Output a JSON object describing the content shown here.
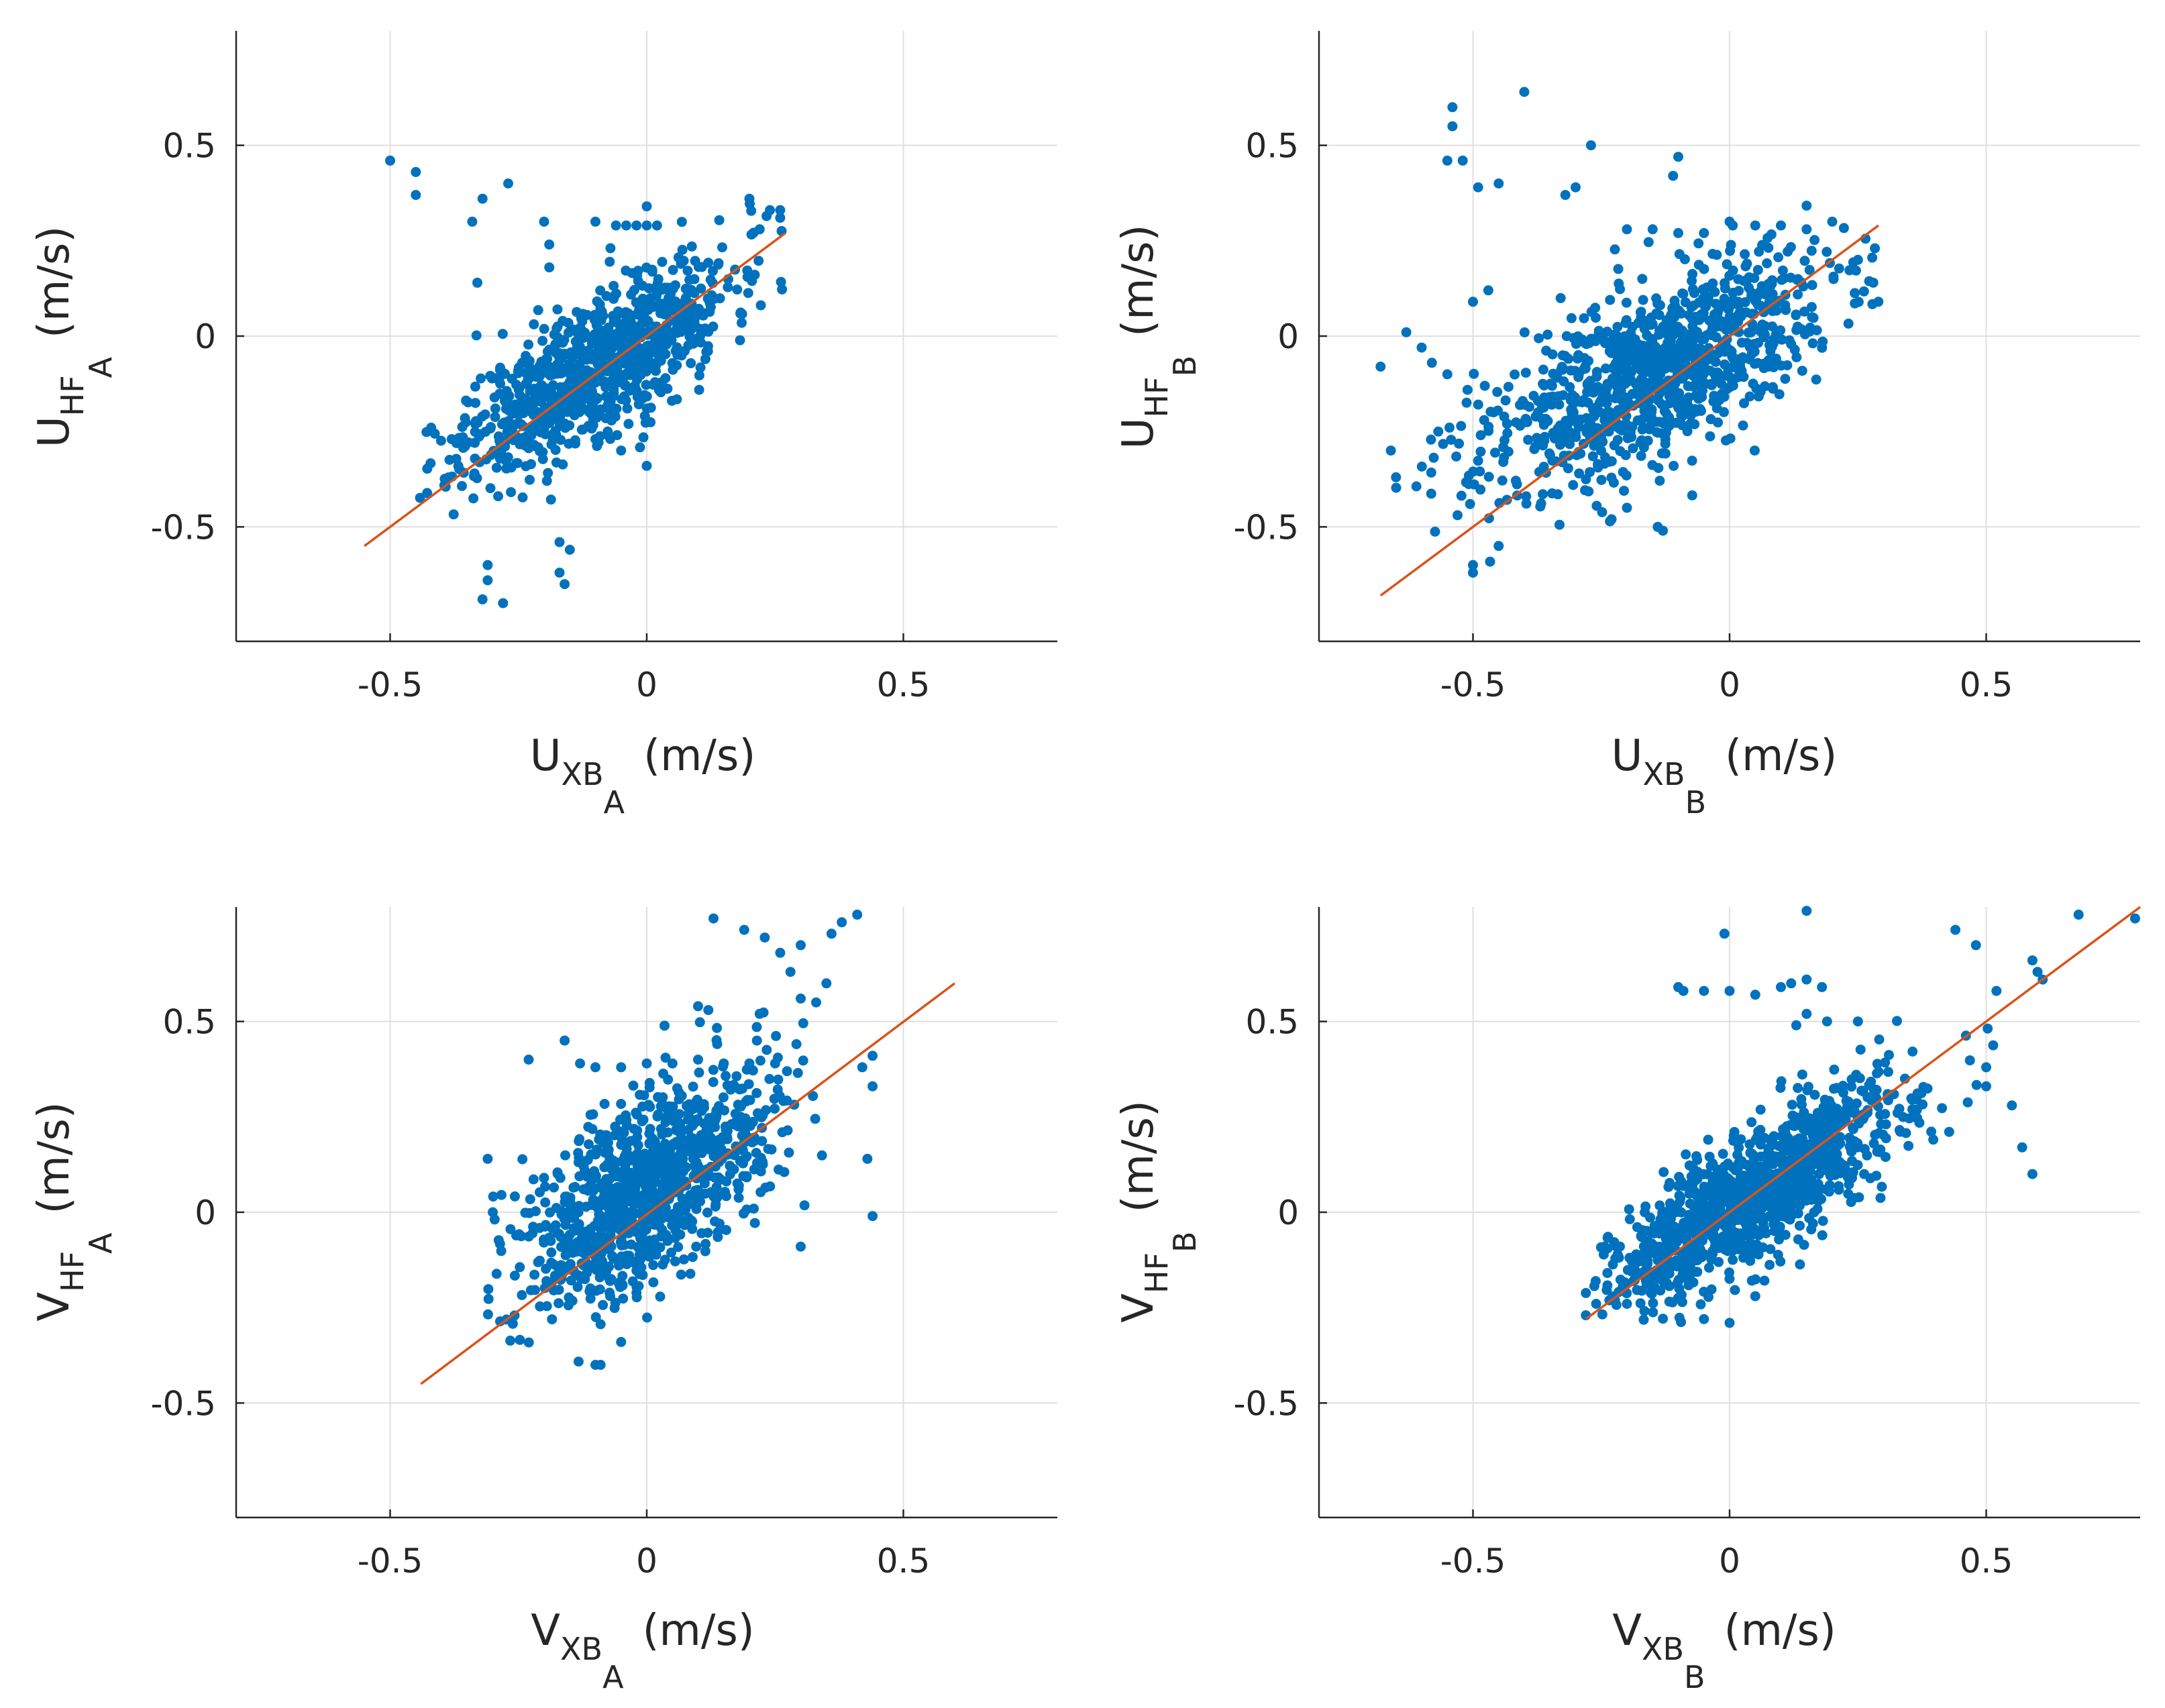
{
  "figure": {
    "colors": {
      "scatter": "#0072BD",
      "fit": "#D95319",
      "grid": "#DFDFDF",
      "axis": "#262626",
      "text": "#262626"
    }
  },
  "chart_data": [
    {
      "type": "scatter",
      "panel": "top-left",
      "xlabel": {
        "base": "U",
        "sub": "XB",
        "subsub": "A",
        "unit": "(m/s)"
      },
      "ylabel": {
        "base": "U",
        "sub": "HF",
        "subsub": "A",
        "unit": "(m/s)"
      },
      "xlim": [
        -0.8,
        0.8
      ],
      "ylim": [
        -0.8,
        0.8
      ],
      "xticks": [
        -0.5,
        0,
        0.5
      ],
      "yticks": [
        -0.5,
        0,
        0.5
      ],
      "xtick_labels": [
        "-0.5",
        "0",
        "0.5"
      ],
      "ytick_labels": [
        "-0.5",
        "0",
        "0.5"
      ],
      "grid": true,
      "fit_line": {
        "x0": -0.55,
        "y0": -0.55,
        "x1": 0.27,
        "y1": 0.27
      },
      "cloud": {
        "n": 900,
        "mx": -0.1,
        "my": -0.08,
        "sx": 0.13,
        "sy": 0.14,
        "rho": 0.75,
        "xmin": -0.45,
        "xmax": 0.27,
        "ymin": -0.7,
        "ymax": 0.36,
        "seed": 11
      },
      "points": [
        [
          -0.5,
          0.46
        ],
        [
          -0.45,
          0.43
        ],
        [
          -0.45,
          0.37
        ],
        [
          -0.32,
          0.36
        ],
        [
          -0.27,
          0.4
        ],
        [
          -0.34,
          0.3
        ],
        [
          -0.33,
          0.14
        ],
        [
          -0.32,
          -0.69
        ],
        [
          -0.28,
          -0.7
        ],
        [
          -0.17,
          -0.62
        ],
        [
          -0.16,
          -0.65
        ],
        [
          -0.17,
          -0.54
        ],
        [
          -0.15,
          -0.56
        ],
        [
          -0.31,
          -0.6
        ],
        [
          -0.31,
          -0.64
        ],
        [
          -0.2,
          0.3
        ],
        [
          -0.19,
          0.24
        ],
        [
          -0.19,
          0.18
        ],
        [
          -0.06,
          0.29
        ],
        [
          -0.04,
          0.29
        ],
        [
          -0.02,
          0.29
        ],
        [
          0.0,
          0.29
        ],
        [
          0.02,
          0.29
        ],
        [
          -0.1,
          0.3
        ],
        [
          0.0,
          0.34
        ],
        [
          0.2,
          0.36
        ],
        [
          0.24,
          0.33
        ],
        [
          0.26,
          0.31
        ],
        [
          0.26,
          0.33
        ],
        [
          0.22,
          0.28
        ],
        [
          -0.38,
          -0.27
        ],
        [
          -0.42,
          -0.24
        ],
        [
          -0.2,
          -0.25
        ],
        [
          -0.1,
          -0.27
        ],
        [
          -0.05,
          -0.3
        ],
        [
          0.0,
          -0.34
        ]
      ]
    },
    {
      "type": "scatter",
      "panel": "top-right",
      "xlabel": {
        "base": "U",
        "sub": "XB",
        "subsub": "B",
        "unit": "(m/s)"
      },
      "ylabel": {
        "base": "U",
        "sub": "HF",
        "subsub": "B",
        "unit": "(m/s)"
      },
      "xlim": [
        -0.8,
        0.8
      ],
      "ylim": [
        -0.8,
        0.8
      ],
      "xticks": [
        -0.5,
        0,
        0.5
      ],
      "yticks": [
        -0.5,
        0,
        0.5
      ],
      "xtick_labels": [
        "-0.5",
        "0",
        "0.5"
      ],
      "ytick_labels": [
        "-0.5",
        "0",
        "0.5"
      ],
      "grid": true,
      "fit_line": {
        "x0": -0.68,
        "y0": -0.68,
        "x1": 0.29,
        "y1": 0.29
      },
      "cloud": {
        "n": 1000,
        "mx": -0.15,
        "my": -0.1,
        "sx": 0.17,
        "sy": 0.15,
        "rho": 0.65,
        "xmin": -0.68,
        "xmax": 0.29,
        "ymin": -0.62,
        "ymax": 0.36,
        "seed": 23
      },
      "points": [
        [
          -0.4,
          0.64
        ],
        [
          -0.54,
          0.6
        ],
        [
          -0.54,
          0.55
        ],
        [
          -0.55,
          0.46
        ],
        [
          -0.52,
          0.46
        ],
        [
          -0.27,
          0.5
        ],
        [
          -0.1,
          0.47
        ],
        [
          -0.11,
          0.42
        ],
        [
          -0.49,
          0.39
        ],
        [
          -0.45,
          0.4
        ],
        [
          -0.3,
          0.39
        ],
        [
          -0.32,
          0.37
        ],
        [
          -0.68,
          -0.08
        ],
        [
          -0.66,
          -0.3
        ],
        [
          -0.65,
          -0.37
        ],
        [
          -0.63,
          0.01
        ],
        [
          -0.6,
          -0.03
        ],
        [
          -0.58,
          -0.07
        ],
        [
          -0.55,
          -0.1
        ],
        [
          -0.5,
          0.09
        ],
        [
          -0.47,
          0.12
        ],
        [
          -0.5,
          -0.62
        ],
        [
          -0.5,
          -0.6
        ],
        [
          -0.45,
          -0.55
        ],
        [
          -0.2,
          -0.45
        ],
        [
          -0.23,
          -0.48
        ],
        [
          -0.14,
          -0.5
        ],
        [
          -0.13,
          -0.51
        ],
        [
          -0.2,
          0.28
        ],
        [
          -0.15,
          0.28
        ],
        [
          -0.1,
          0.27
        ],
        [
          -0.05,
          0.27
        ],
        [
          0.0,
          0.3
        ],
        [
          0.05,
          0.29
        ],
        [
          0.1,
          0.29
        ],
        [
          0.15,
          0.28
        ],
        [
          0.2,
          0.3
        ],
        [
          0.25,
          0.2
        ],
        [
          0.28,
          0.14
        ],
        [
          0.29,
          0.09
        ]
      ]
    },
    {
      "type": "scatter",
      "panel": "bottom-left",
      "xlabel": {
        "base": "V",
        "sub": "XB",
        "subsub": "A",
        "unit": "(m/s)"
      },
      "ylabel": {
        "base": "V",
        "sub": "HF",
        "subsub": "A",
        "unit": "(m/s)"
      },
      "xlim": [
        -0.8,
        0.8
      ],
      "ylim": [
        -0.8,
        0.8
      ],
      "xticks": [
        -0.5,
        0,
        0.5
      ],
      "yticks": [
        -0.5,
        0,
        0.5
      ],
      "xtick_labels": [
        "-0.5",
        "0",
        "0.5"
      ],
      "ytick_labels": [
        "-0.5",
        "0",
        "0.5"
      ],
      "grid": true,
      "fit_line": {
        "x0": -0.44,
        "y0": -0.45,
        "x1": 0.6,
        "y1": 0.6
      },
      "cloud": {
        "n": 1000,
        "mx": 0.0,
        "my": 0.06,
        "sx": 0.12,
        "sy": 0.15,
        "rho": 0.6,
        "xmin": -0.31,
        "xmax": 0.45,
        "ymin": -0.4,
        "ymax": 0.78,
        "seed": 37
      },
      "points": [
        [
          0.13,
          0.77
        ],
        [
          0.19,
          0.74
        ],
        [
          0.23,
          0.72
        ],
        [
          0.36,
          0.73
        ],
        [
          0.38,
          0.76
        ],
        [
          0.41,
          0.78
        ],
        [
          0.3,
          0.7
        ],
        [
          0.26,
          0.68
        ],
        [
          0.28,
          0.63
        ],
        [
          0.35,
          0.6
        ],
        [
          0.33,
          0.55
        ],
        [
          0.3,
          0.56
        ],
        [
          0.22,
          0.52
        ],
        [
          0.1,
          0.54
        ],
        [
          0.12,
          0.53
        ],
        [
          -0.31,
          0.14
        ],
        [
          -0.3,
          0.0
        ],
        [
          -0.23,
          0.4
        ],
        [
          -0.16,
          0.45
        ],
        [
          -0.13,
          0.39
        ],
        [
          -0.1,
          0.38
        ],
        [
          -0.05,
          0.38
        ],
        [
          0.0,
          0.39
        ],
        [
          0.05,
          0.39
        ],
        [
          0.1,
          0.4
        ],
        [
          0.15,
          0.39
        ],
        [
          0.2,
          0.39
        ],
        [
          0.25,
          0.39
        ],
        [
          0.42,
          0.38
        ],
        [
          0.44,
          0.41
        ],
        [
          0.44,
          0.33
        ],
        [
          0.43,
          0.14
        ],
        [
          0.44,
          -0.01
        ],
        [
          -0.1,
          -0.4
        ],
        [
          -0.09,
          -0.4
        ],
        [
          -0.05,
          -0.34
        ],
        [
          0.3,
          -0.09
        ]
      ]
    },
    {
      "type": "scatter",
      "panel": "bottom-right",
      "xlabel": {
        "base": "V",
        "sub": "XB",
        "subsub": "B",
        "unit": "(m/s)"
      },
      "ylabel": {
        "base": "V",
        "sub": "HF",
        "subsub": "B",
        "unit": "(m/s)"
      },
      "xlim": [
        -0.8,
        0.8
      ],
      "ylim": [
        -0.8,
        0.8
      ],
      "xticks": [
        -0.5,
        0,
        0.5
      ],
      "yticks": [
        -0.5,
        0,
        0.5
      ],
      "xtick_labels": [
        "-0.5",
        "0",
        "0.5"
      ],
      "ytick_labels": [
        "-0.5",
        "0",
        "0.5"
      ],
      "grid": true,
      "fit_line": {
        "x0": -0.28,
        "y0": -0.28,
        "x1": 0.8,
        "y1": 0.8
      },
      "cloud": {
        "n": 1150,
        "mx": 0.05,
        "my": 0.05,
        "sx": 0.15,
        "sy": 0.15,
        "rho": 0.82,
        "xmin": -0.28,
        "xmax": 0.6,
        "ymin": -0.3,
        "ymax": 0.7,
        "seed": 53
      },
      "points": [
        [
          0.79,
          0.77
        ],
        [
          0.68,
          0.78
        ],
        [
          0.59,
          0.66
        ],
        [
          0.61,
          0.61
        ],
        [
          0.15,
          0.79
        ],
        [
          -0.01,
          0.73
        ],
        [
          -0.1,
          0.59
        ],
        [
          -0.09,
          0.58
        ],
        [
          -0.05,
          0.58
        ],
        [
          0.0,
          0.58
        ],
        [
          0.05,
          0.57
        ],
        [
          0.1,
          0.59
        ],
        [
          0.12,
          0.6
        ],
        [
          0.15,
          0.61
        ],
        [
          0.18,
          0.59
        ],
        [
          0.19,
          0.5
        ],
        [
          0.25,
          0.5
        ],
        [
          0.15,
          0.52
        ],
        [
          0.13,
          0.49
        ],
        [
          0.5,
          0.38
        ],
        [
          0.5,
          0.33
        ],
        [
          0.55,
          0.28
        ],
        [
          0.57,
          0.17
        ],
        [
          0.59,
          0.1
        ],
        [
          0.6,
          0.63
        ],
        [
          0.52,
          0.58
        ],
        [
          0.48,
          0.7
        ],
        [
          0.44,
          0.74
        ],
        [
          -0.28,
          -0.27
        ],
        [
          -0.26,
          -0.24
        ],
        [
          -0.2,
          -0.24
        ],
        [
          0.0,
          -0.29
        ],
        [
          -0.05,
          -0.28
        ],
        [
          0.05,
          -0.22
        ]
      ]
    }
  ]
}
